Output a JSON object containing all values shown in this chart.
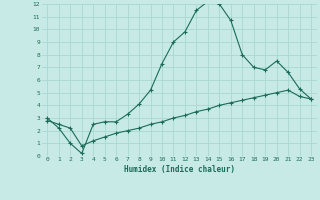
{
  "xlabel": "Humidex (Indice chaleur)",
  "bg_color": "#c8eae6",
  "grid_color": "#a8d8d4",
  "line_color": "#1a6b5a",
  "line1_x": [
    0,
    1,
    2,
    3,
    4,
    5,
    6,
    7,
    8,
    9,
    10,
    11,
    12,
    13,
    14,
    15,
    16,
    17,
    18,
    19,
    20,
    21,
    22,
    23
  ],
  "line1_y": [
    3.0,
    2.2,
    1.0,
    0.2,
    2.5,
    2.7,
    2.7,
    3.3,
    4.1,
    5.2,
    7.3,
    9.0,
    9.8,
    11.5,
    12.2,
    12.0,
    10.7,
    8.0,
    7.0,
    6.8,
    7.5,
    6.6,
    5.3,
    4.5
  ],
  "line2_x": [
    0,
    1,
    2,
    3,
    4,
    5,
    6,
    7,
    8,
    9,
    10,
    11,
    12,
    13,
    14,
    15,
    16,
    17,
    18,
    19,
    20,
    21,
    22,
    23
  ],
  "line2_y": [
    2.8,
    2.5,
    2.2,
    0.8,
    1.2,
    1.5,
    1.8,
    2.0,
    2.2,
    2.5,
    2.7,
    3.0,
    3.2,
    3.5,
    3.7,
    4.0,
    4.2,
    4.4,
    4.6,
    4.8,
    5.0,
    5.2,
    4.7,
    4.5
  ],
  "xlim": [
    -0.5,
    23.5
  ],
  "ylim": [
    0,
    12
  ],
  "xticks": [
    0,
    1,
    2,
    3,
    4,
    5,
    6,
    7,
    8,
    9,
    10,
    11,
    12,
    13,
    14,
    15,
    16,
    17,
    18,
    19,
    20,
    21,
    22,
    23
  ],
  "yticks": [
    0,
    1,
    2,
    3,
    4,
    5,
    6,
    7,
    8,
    9,
    10,
    11,
    12
  ]
}
